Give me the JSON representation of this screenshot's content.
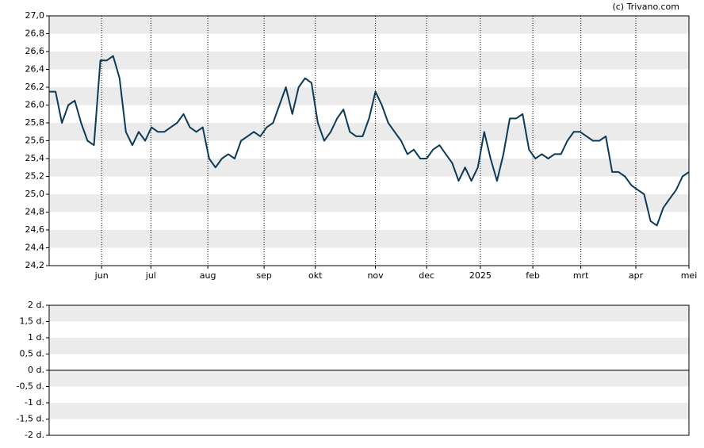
{
  "chart_data": [
    {
      "type": "line",
      "credit": "(c) Trivano.com",
      "xlim": [
        0,
        100
      ],
      "xticks": [
        {
          "value": 8.2,
          "label": "jun"
        },
        {
          "value": 15.9,
          "label": "jul"
        },
        {
          "value": 24.8,
          "label": "aug"
        },
        {
          "value": 33.6,
          "label": "sep"
        },
        {
          "value": 41.6,
          "label": "okt"
        },
        {
          "value": 51.0,
          "label": "nov"
        },
        {
          "value": 59.0,
          "label": "dec"
        },
        {
          "value": 67.4,
          "label": "2025"
        },
        {
          "value": 75.6,
          "label": "feb"
        },
        {
          "value": 83.1,
          "label": "mrt"
        },
        {
          "value": 91.7,
          "label": "apr"
        },
        {
          "value": 100,
          "label": "mei"
        }
      ],
      "ylim": [
        24.2,
        27.0
      ],
      "yticks": [
        {
          "value": 24.2,
          "label": "24,2"
        },
        {
          "value": 24.4,
          "label": "24,4"
        },
        {
          "value": 24.6,
          "label": "24,6"
        },
        {
          "value": 24.8,
          "label": "24,8"
        },
        {
          "value": 25.0,
          "label": "25,0"
        },
        {
          "value": 25.2,
          "label": "25,2"
        },
        {
          "value": 25.4,
          "label": "25,4"
        },
        {
          "value": 25.6,
          "label": "25,6"
        },
        {
          "value": 25.8,
          "label": "25,8"
        },
        {
          "value": 26.0,
          "label": "26,0"
        },
        {
          "value": 26.2,
          "label": "26,2"
        },
        {
          "value": 26.4,
          "label": "26,4"
        },
        {
          "value": 26.6,
          "label": "26,6"
        },
        {
          "value": 26.8,
          "label": "26,8"
        },
        {
          "value": 27.0,
          "label": "27,0"
        }
      ],
      "grid": true,
      "color": "#0d3a56",
      "values": [
        26.15,
        26.15,
        25.8,
        26.0,
        26.05,
        25.8,
        25.6,
        25.55,
        26.5,
        26.5,
        26.55,
        26.3,
        25.7,
        25.55,
        25.7,
        25.6,
        25.75,
        25.7,
        25.7,
        25.75,
        25.8,
        25.9,
        25.75,
        25.7,
        25.75,
        25.4,
        25.3,
        25.4,
        25.45,
        25.4,
        25.6,
        25.65,
        25.7,
        25.65,
        25.75,
        25.8,
        26.0,
        26.2,
        25.9,
        26.2,
        26.3,
        26.25,
        25.8,
        25.6,
        25.7,
        25.85,
        25.95,
        25.7,
        25.65,
        25.65,
        25.85,
        26.15,
        26.0,
        25.8,
        25.7,
        25.6,
        25.45,
        25.5,
        25.4,
        25.4,
        25.5,
        25.55,
        25.45,
        25.35,
        25.15,
        25.3,
        25.15,
        25.3,
        25.7,
        25.4,
        25.15,
        25.45,
        25.85,
        25.85,
        25.9,
        25.5,
        25.4,
        25.45,
        25.4,
        25.45,
        25.45,
        25.6,
        25.7,
        25.7,
        25.65,
        25.6,
        25.6,
        25.65,
        25.25,
        25.25,
        25.2,
        25.1,
        25.05,
        25.0,
        24.7,
        24.65,
        24.85,
        24.95,
        25.05,
        25.2,
        25.25
      ]
    },
    {
      "type": "line",
      "ylim": [
        -2,
        2
      ],
      "yticks": [
        {
          "value": -2,
          "label": "-2 d."
        },
        {
          "value": -1.5,
          "label": "-1,5 d."
        },
        {
          "value": -1,
          "label": "-1 d."
        },
        {
          "value": -0.5,
          "label": "-0,5 d."
        },
        {
          "value": 0,
          "label": "0 d."
        },
        {
          "value": 0.5,
          "label": "0,5 d."
        },
        {
          "value": 1,
          "label": "1 d."
        },
        {
          "value": 1.5,
          "label": "1,5 d."
        },
        {
          "value": 2,
          "label": "2 d."
        }
      ],
      "grid": true
    }
  ]
}
